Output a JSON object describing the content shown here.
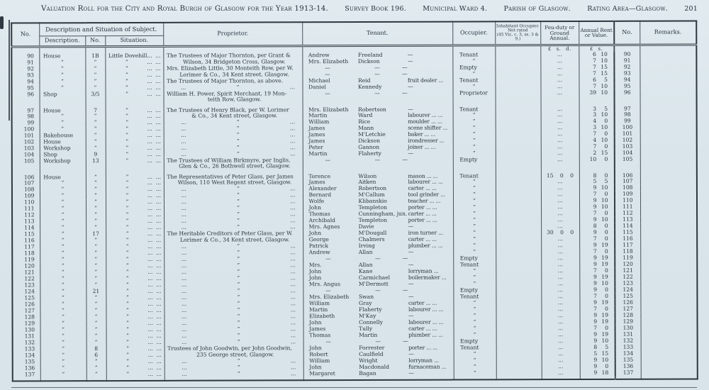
{
  "page": {
    "title": "Valuation Roll for the City and Royal Burgh of Glasgow for the Year 1913-14.",
    "survey_book": "Survey Book 196.",
    "ward": "Municipal Ward 4.",
    "parish": "Parish of Glasgow.",
    "rating_area": "Rating Area—Glasgow.",
    "page_number": "201"
  },
  "header": {
    "no": "No.",
    "desc_situation_group": "Description and Situation of Subject.",
    "description": "Description.",
    "sub_no": "No.",
    "situation": "Situation.",
    "proprietor": "Proprietor.",
    "tenant": "Tenant.",
    "occupier": "Occupier.",
    "inhabitant": "Inhabitant Occupier.\nNot rated\n(45 Vic. c. 3, ss. 3 & 9.)",
    "feu_duty": "Feu-duty or Ground Annual.",
    "annual_rent": "Annual Rent or Value.",
    "no2": "No.",
    "remarks": "Remarks.",
    "feu_units": "£ s. d.",
    "rent_units": "£ s."
  },
  "symbols": {
    "dots": "...",
    "ditto": "”",
    "dash": "—"
  },
  "rows": [
    {
      "no": "90",
      "desc": "House",
      "dno": "1B",
      "sit": "Little Dovehill",
      "prop": "The Trustees of Major Thornton, per Grant &",
      "pt": "a",
      "t1": "Andrew",
      "t2": "Freeland",
      "t3": "—",
      "occ": "Tenant",
      "feu": "...",
      "rl": "6",
      "rs": "10"
    },
    {
      "no": "91",
      "desc": "”",
      "dno": "”",
      "sit": "”",
      "prop": "Wilson, 34 Bridgeton Cross, Glasgow.",
      "pt": "b",
      "t1": "Mrs. Elizabeth",
      "t2": "Dickson",
      "t3": "—",
      "occ": "”",
      "feu": "...",
      "rl": "7",
      "rs": "10"
    },
    {
      "no": "92",
      "desc": "”",
      "dno": "”",
      "sit": "”",
      "prop": "Mrs. Elizabeth Little, 30 Monteith Row, per W.",
      "pt": "a",
      "t1": "—",
      "t2": "—",
      "t3": "—",
      "occ": "Empty",
      "feu": "...",
      "rl": "7",
      "rs": "15"
    },
    {
      "no": "93",
      "desc": "”",
      "dno": "”",
      "sit": "”",
      "prop": "Lorimer & Co., 34 Kent street, Glasgow.",
      "pt": "b",
      "t1": "—",
      "t2": "—",
      "t3": "—",
      "occ": "”",
      "feu": "...",
      "rl": "7",
      "rs": "15"
    },
    {
      "no": "94",
      "desc": "”",
      "dno": "”",
      "sit": "”",
      "prop": "The Trustees of Major Thornton, as above.",
      "pt": "a",
      "t1": "Michael",
      "t2": "Reid",
      "t3": "fruit dealer ...",
      "occ": "Tenant",
      "feu": "...",
      "rl": "6",
      "rs": "5"
    },
    {
      "no": "95",
      "desc": "”",
      "dno": "”",
      "sit": "”",
      "prop": "",
      "pt": "d",
      "t1": "Daniel",
      "t2": "Kennedy",
      "t3": "—",
      "occ": "”",
      "feu": "...",
      "rl": "7",
      "rs": "10"
    },
    {
      "no": "96",
      "desc": "Shop",
      "dno": "3/5",
      "sit": "”",
      "prop": "William H. Power, Spirit Merchant, 19 Mon-\nteith Row, Glasgow.",
      "pt": "w",
      "t1": "—",
      "t2": "—",
      "t3": "—",
      "occ": "Proprietor",
      "feu": "...",
      "rl": "39",
      "rs": "10"
    },
    {
      "no": "97",
      "g": 1,
      "desc": "House",
      "dno": "7",
      "sit": "”",
      "prop": "The Trustees of Henry Black, per W. Lorimer",
      "pt": "a",
      "t1": "Mrs. Elizabeth",
      "t2": "Robertson",
      "t3": "—",
      "occ": "Tenant",
      "feu": "...",
      "rl": "3",
      "rs": "5"
    },
    {
      "no": "98",
      "desc": "”",
      "dno": "”",
      "sit": "”",
      "prop": "& Co., 34 Kent street, Glasgow.",
      "pt": "b",
      "t1": "Martin",
      "t2": "Ward",
      "t3": "labourer ... ...",
      "occ": "”",
      "feu": "...",
      "rl": "3",
      "rs": "10"
    },
    {
      "no": "99",
      "desc": "”",
      "dno": "”",
      "sit": "”",
      "prop": "",
      "pt": "d",
      "t1": "William",
      "t2": "Rice",
      "t3": "moulder ... ...",
      "occ": "”",
      "feu": "...",
      "rl": "4",
      "rs": "0"
    },
    {
      "no": "100",
      "desc": "”",
      "dno": "”",
      "sit": "”",
      "prop": "",
      "pt": "d",
      "t1": "James",
      "t2": "Mann",
      "t3": "scene shifter ...",
      "occ": "”",
      "feu": "...",
      "rl": "3",
      "rs": "10"
    },
    {
      "no": "101",
      "desc": "Bakehouse",
      "dno": "”",
      "sit": "”",
      "prop": "",
      "pt": "d",
      "t1": "James",
      "t2": "M'Letchie",
      "t3": "baker ... ...",
      "occ": "”",
      "feu": "...",
      "rl": "7",
      "rs": "0"
    },
    {
      "no": "102",
      "desc": "House",
      "dno": "”",
      "sit": "”",
      "prop": "",
      "pt": "d",
      "t1": "James",
      "t2": "Dickson",
      "t3": "irondresser ...",
      "occ": "”",
      "feu": "...",
      "rl": "4",
      "rs": "10"
    },
    {
      "no": "103",
      "desc": "Workshop",
      "dno": "”",
      "sit": "”",
      "prop": "",
      "pt": "d",
      "t1": "Peter",
      "t2": "Gannon",
      "t3": "joiner ... ...",
      "occ": "”",
      "feu": "...",
      "rl": "7",
      "rs": "0"
    },
    {
      "no": "104",
      "desc": "Shop",
      "dno": "9",
      "sit": "”",
      "prop": "",
      "pt": "d",
      "t1": "Martin",
      "t2": "Flaherty",
      "t3": "—",
      "occ": "”",
      "feu": "...",
      "rl": "2",
      "rs": "15"
    },
    {
      "no": "105",
      "desc": "Workshop",
      "dno": "13",
      "sit": "”",
      "prop": "The Trustees of William Birkmyre, per Inglis,\nGlen & Co., 26 Bothwell street, Glasgow.",
      "pt": "w",
      "t1": "—",
      "t2": "—",
      "t3": "—",
      "occ": "Empty",
      "feu": "...",
      "rl": "10",
      "rs": "0"
    },
    {
      "no": "106",
      "g": 1,
      "desc": "House",
      "dno": "”",
      "sit": "”",
      "prop": "The Representatives of Peter Glass, per James",
      "pt": "a",
      "t1": "Terence",
      "t2": "Wilson",
      "t3": "mason ... ...",
      "occ": "Tenant",
      "feu": "15 0 0",
      "rl": "8",
      "rs": "0"
    },
    {
      "no": "107",
      "desc": "”",
      "dno": "”",
      "sit": "”",
      "prop": "Wilson, 110 West Regent street, Glasgow.",
      "pt": "b",
      "t1": "James",
      "t2": "Aitken",
      "t3": "labourer ... ...",
      "occ": "”",
      "feu": "...",
      "rl": "5",
      "rs": "5"
    },
    {
      "no": "108",
      "desc": "”",
      "dno": "”",
      "sit": "”",
      "prop": "",
      "pt": "d",
      "t1": "Alexander",
      "t2": "Robertson",
      "t3": "carter ... ...",
      "occ": "”",
      "feu": "...",
      "rl": "9",
      "rs": "10"
    },
    {
      "no": "109",
      "desc": "”",
      "dno": "”",
      "sit": "”",
      "prop": "",
      "pt": "d",
      "t1": "Bernard",
      "t2": "M'Callum",
      "t3": "tool grinder ...",
      "occ": "”",
      "feu": "...",
      "rl": "7",
      "rs": "0"
    },
    {
      "no": "110",
      "desc": "”",
      "dno": "”",
      "sit": "”",
      "prop": "",
      "pt": "d",
      "t1": "Wolfe",
      "t2": "Klibanskio",
      "t3": "teacher ... ...",
      "occ": "”",
      "feu": "...",
      "rl": "9",
      "rs": "10"
    },
    {
      "no": "111",
      "desc": "”",
      "dno": "”",
      "sit": "”",
      "prop": "",
      "pt": "d",
      "t1": "John",
      "t2": "Templeton",
      "t3": "porter ... ...",
      "occ": "”",
      "feu": "...",
      "rl": "9",
      "rs": "10"
    },
    {
      "no": "112",
      "desc": "”",
      "dno": "”",
      "sit": "”",
      "prop": "",
      "pt": "d",
      "t1": "Thomas",
      "t2": "Cunningham, jun.",
      "t3": "carter ... ...",
      "occ": "”",
      "feu": "...",
      "rl": "7",
      "rs": "0"
    },
    {
      "no": "113",
      "desc": "”",
      "dno": "”",
      "sit": "”",
      "prop": "",
      "pt": "d",
      "t1": "Archibald",
      "t2": "Templeton",
      "t3": "porter ... ...",
      "occ": "”",
      "feu": "...",
      "rl": "9",
      "rs": "10"
    },
    {
      "no": "114",
      "desc": "”",
      "dno": "”",
      "sit": "”",
      "prop": "",
      "pt": "d",
      "t1": "Mrs. Agnes",
      "t2": "Davie",
      "t3": "—",
      "occ": "”",
      "feu": "...",
      "rl": "8",
      "rs": "0"
    },
    {
      "no": "115",
      "desc": "”",
      "dno": "17",
      "sit": "”",
      "prop": "The Heritable Creditors of Peter Glass, per W.",
      "pt": "a",
      "t1": "John",
      "t2": "M'Dougall",
      "t3": "iron turner ...",
      "occ": "”",
      "feu": "30 0 0",
      "rl": "9",
      "rs": "0"
    },
    {
      "no": "116",
      "desc": "”",
      "dno": "”",
      "sit": "”",
      "prop": "Lorimer & Co., 34 Kent street, Glasgow.",
      "pt": "b",
      "t1": "George",
      "t2": "Chalmers",
      "t3": "carter ... ...",
      "occ": "”",
      "feu": "...",
      "rl": "7",
      "rs": "0"
    },
    {
      "no": "117",
      "desc": "”",
      "dno": "”",
      "sit": "”",
      "prop": "",
      "pt": "d",
      "t1": "Patrick",
      "t2": "Irving",
      "t3": "plumber ... ...",
      "occ": "”",
      "feu": "...",
      "rl": "9",
      "rs": "19"
    },
    {
      "no": "118",
      "desc": "”",
      "dno": "”",
      "sit": "”",
      "prop": "",
      "pt": "d",
      "t1": "Andrew",
      "t2": "Allan",
      "t3": "—",
      "occ": "”",
      "feu": "...",
      "rl": "7",
      "rs": "0"
    },
    {
      "no": "119",
      "desc": "”",
      "dno": "”",
      "sit": "”",
      "prop": "",
      "pt": "d",
      "t1": "—",
      "t2": "—",
      "t3": "—",
      "occ": "Empty",
      "feu": "...",
      "rl": "9",
      "rs": "19"
    },
    {
      "no": "120",
      "desc": "”",
      "dno": "”",
      "sit": "”",
      "prop": "",
      "pt": "d",
      "t1": "Mrs.",
      "t2": "Allan",
      "t3": "—",
      "occ": "Tenant",
      "feu": "...",
      "rl": "9",
      "rs": "19"
    },
    {
      "no": "121",
      "desc": "”",
      "dno": "”",
      "sit": "”",
      "prop": "",
      "pt": "d",
      "t1": "John",
      "t2": "Kane",
      "t3": "lorryman ...",
      "occ": "”",
      "feu": "...",
      "rl": "7",
      "rs": "0"
    },
    {
      "no": "122",
      "desc": "”",
      "dno": "”",
      "sit": "”",
      "prop": "",
      "pt": "d",
      "t1": "John",
      "t2": "Carmichael",
      "t3": "boilermaker ...",
      "occ": "”",
      "feu": "...",
      "rl": "9",
      "rs": "19"
    },
    {
      "no": "123",
      "desc": "”",
      "dno": "”",
      "sit": "”",
      "prop": "",
      "pt": "d",
      "t1": "Mrs. Angus",
      "t2": "M'Dermott",
      "t3": "—",
      "occ": "”",
      "feu": "...",
      "rl": "9",
      "rs": "10"
    },
    {
      "no": "124",
      "desc": "”",
      "dno": "21",
      "sit": "”",
      "prop": "",
      "pt": "d",
      "t1": "—",
      "t2": "—",
      "t3": "—",
      "occ": "Empty",
      "feu": "...",
      "rl": "9",
      "rs": "0"
    },
    {
      "no": "125",
      "desc": "”",
      "dno": "”",
      "sit": "”",
      "prop": "",
      "pt": "d",
      "t1": "Mrs. Elizabeth",
      "t2": "Swan",
      "t3": "—",
      "occ": "Tenant",
      "feu": "...",
      "rl": "7",
      "rs": "0"
    },
    {
      "no": "126",
      "desc": "”",
      "dno": "”",
      "sit": "”",
      "prop": "",
      "pt": "d",
      "t1": "William",
      "t2": "Gray",
      "t3": "carter ... ...",
      "occ": "”",
      "feu": "...",
      "rl": "9",
      "rs": "19"
    },
    {
      "no": "127",
      "desc": "”",
      "dno": "”",
      "sit": "”",
      "prop": "",
      "pt": "d",
      "t1": "Martin",
      "t2": "Flaherty",
      "t3": "labourer ... ...",
      "occ": "”",
      "feu": "...",
      "rl": "7",
      "rs": "0"
    },
    {
      "no": "128",
      "desc": "”",
      "dno": "”",
      "sit": "”",
      "prop": "",
      "pt": "d",
      "t1": "Elizabeth",
      "t2": "M'Kay",
      "t3": "—",
      "occ": "”",
      "feu": "...",
      "rl": "9",
      "rs": "19"
    },
    {
      "no": "129",
      "desc": "”",
      "dno": "”",
      "sit": "”",
      "prop": "",
      "pt": "d",
      "t1": "John",
      "t2": "Connelly",
      "t3": "labourer ... ...",
      "occ": "”",
      "feu": "...",
      "rl": "9",
      "rs": "19"
    },
    {
      "no": "130",
      "desc": "”",
      "dno": "”",
      "sit": "”",
      "prop": "",
      "pt": "d",
      "t1": "James",
      "t2": "Tully",
      "t3": "carter ... ...",
      "occ": "”",
      "feu": "...",
      "rl": "7",
      "rs": "0"
    },
    {
      "no": "131",
      "desc": "”",
      "dno": "”",
      "sit": "”",
      "prop": "",
      "pt": "d",
      "t1": "Thomas",
      "t2": "Martin",
      "t3": "plumber ... ...",
      "occ": "”",
      "feu": "...",
      "rl": "9",
      "rs": "19"
    },
    {
      "no": "132",
      "desc": "”",
      "dno": "”",
      "sit": "”",
      "prop": "",
      "pt": "d",
      "t1": "—",
      "t2": "—",
      "t3": "—",
      "occ": "Empty",
      "feu": "...",
      "rl": "9",
      "rs": "10"
    },
    {
      "no": "133",
      "desc": "”",
      "dno": "8",
      "sit": "”",
      "prop": "Trustees of John Goodwin, per John Goodwin,",
      "pt": "a",
      "t1": "John",
      "t2": "Forrester",
      "t3": "porter ... ...",
      "occ": "Tenant",
      "feu": "...",
      "rl": "8",
      "rs": "5"
    },
    {
      "no": "134",
      "desc": "”",
      "dno": "6",
      "sit": "”",
      "prop": "235 George street, Glasgow.",
      "pt": "b",
      "t1": "Robert",
      "t2": "Caulfield",
      "t3": "—",
      "occ": "”",
      "feu": "...",
      "rl": "5",
      "rs": "15"
    },
    {
      "no": "135",
      "desc": "”",
      "dno": "”",
      "sit": "”",
      "prop": "",
      "pt": "d",
      "t1": "William",
      "t2": "Wright",
      "t3": "lorryman ...",
      "occ": "”",
      "feu": "...",
      "rl": "9",
      "rs": "10"
    },
    {
      "no": "136",
      "desc": "”",
      "dno": "”",
      "sit": "”",
      "prop": "",
      "pt": "d",
      "t1": "John",
      "t2": "Macdonald",
      "t3": "furnaceman ...",
      "occ": "”",
      "feu": "...",
      "rl": "9",
      "rs": "0"
    },
    {
      "no": "137",
      "desc": "”",
      "dno": "”",
      "sit": "”",
      "prop": "",
      "pt": "d",
      "t1": "Margaret",
      "t2": "Bagan",
      "t3": "—",
      "occ": "”",
      "feu": "...",
      "rl": "9",
      "rs": "18"
    }
  ]
}
